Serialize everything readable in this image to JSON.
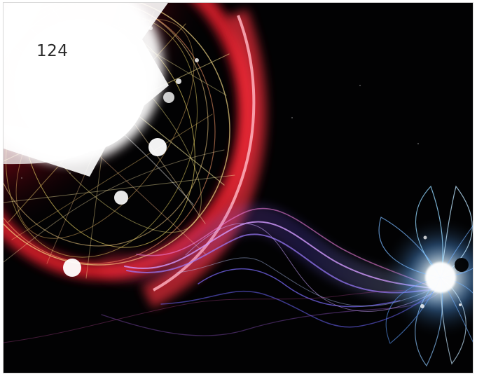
{
  "page": {
    "number": "124"
  },
  "artwork": {
    "subject": "abstract-light-sphere-and-energy-stream",
    "colors": {
      "background": "#020203",
      "core": "#ffffff",
      "red": "#ff2433",
      "yellow": "#ffd65b",
      "violet": "#7d57ff",
      "blue": "#73b7ff"
    }
  }
}
